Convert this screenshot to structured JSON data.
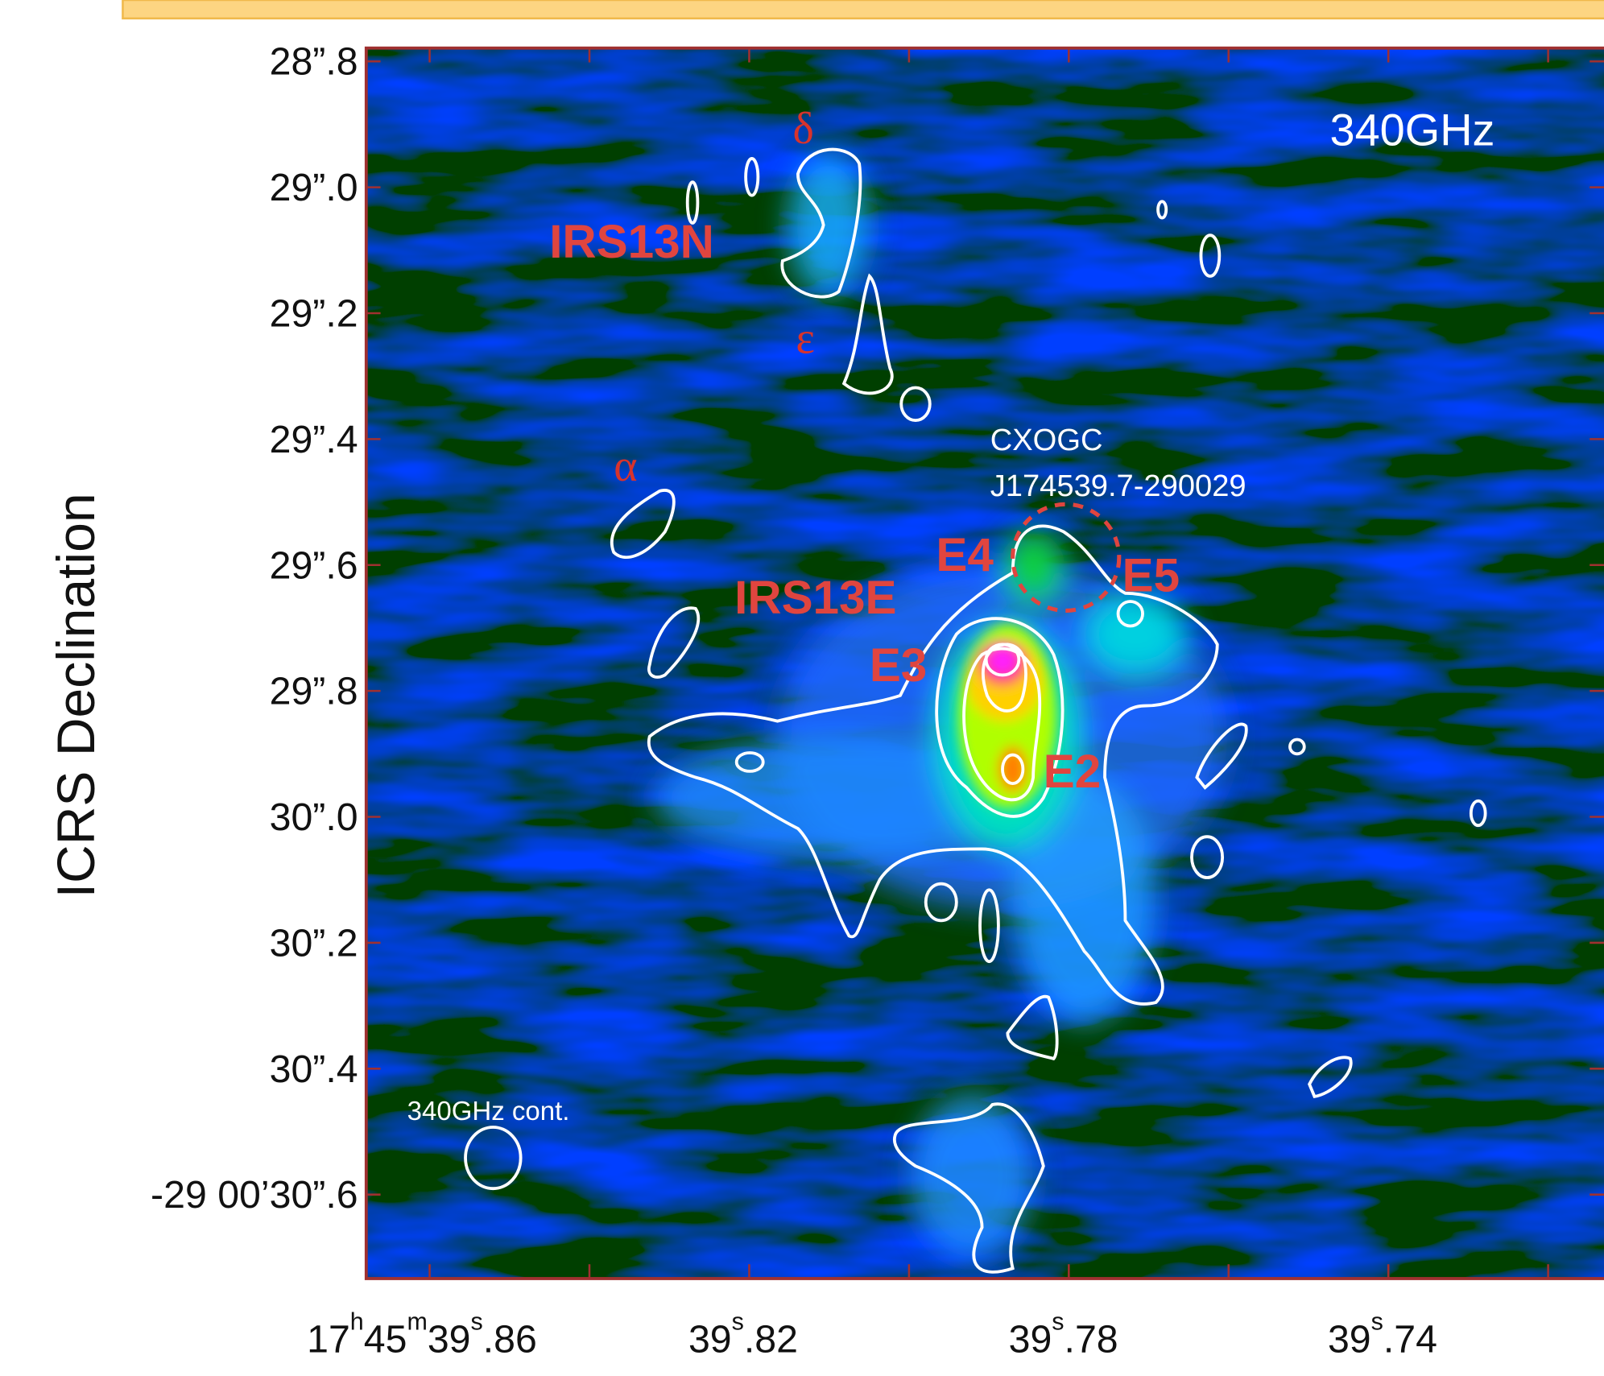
{
  "panel_label": "340GHz",
  "y_axis_title": "ICRS Declination",
  "y_ticks": [
    "28”.8",
    "29”.0",
    "29”.2",
    "29”.4",
    "29”.6",
    "29”.8",
    "30”.0",
    "30”.2",
    "30”.4",
    "-29 00’30”.6"
  ],
  "x_ticks": [
    {
      "parts": [
        "17",
        "h",
        "45",
        "m",
        "39",
        "s",
        ".86"
      ]
    },
    {
      "parts": [
        "39",
        "s",
        ".82"
      ]
    },
    {
      "parts": [
        "39",
        "s",
        ".78"
      ]
    },
    {
      "parts": [
        "39",
        "s",
        ".74"
      ]
    }
  ],
  "annotations": {
    "delta": "δ",
    "irs13n": "IRS13N",
    "epsilon": "ε",
    "alpha": "α",
    "cxogc": "CXOGC",
    "cxogc_id": "J174539.7-290029",
    "e4": "E4",
    "e5": "E5",
    "irs13e": "IRS13E",
    "e3": "E3",
    "e2": "E2",
    "beam": "340GHz cont."
  }
}
